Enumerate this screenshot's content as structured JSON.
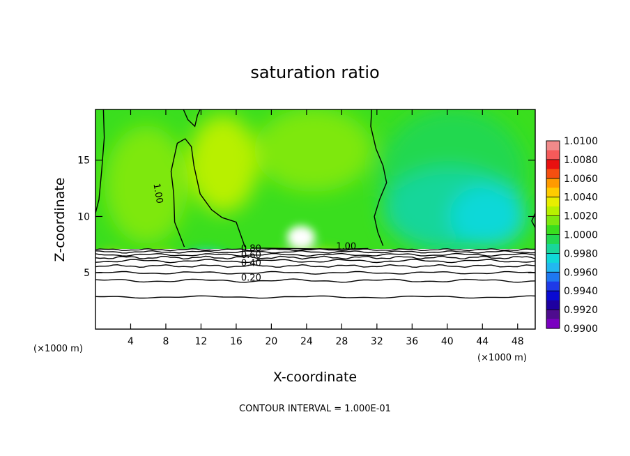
{
  "chart_data": {
    "type": "heatmap",
    "title": "saturation ratio",
    "xlabel": "X-coordinate",
    "ylabel": "Z-coordinate",
    "x_unit_label_left": "(×1000 m)",
    "x_unit_label_right": "(×1000 m)",
    "footer": "CONTOUR INTERVAL = 1.000E-01",
    "xlim": [
      0,
      50
    ],
    "ylim": [
      0,
      19.5
    ],
    "x_ticks": [
      4,
      8,
      12,
      16,
      20,
      24,
      28,
      32,
      36,
      40,
      44,
      48
    ],
    "y_ticks": [
      5,
      10,
      15
    ],
    "colorbar": {
      "levels": [
        "1.0100",
        "1.0080",
        "1.0060",
        "1.0040",
        "1.0020",
        "1.0000",
        "0.9980",
        "0.9960",
        "0.9940",
        "0.9920",
        "0.9900"
      ],
      "colors": [
        "#f08a8a",
        "#f55a5a",
        "#e81010",
        "#f54f10",
        "#ff9a00",
        "#ffcc00",
        "#e8ee00",
        "#b8f000",
        "#7ee810",
        "#3ade1e",
        "#22d850",
        "#19d69a",
        "#10d8d8",
        "#22b8f0",
        "#1e78f0",
        "#1e3ae8",
        "#0a0ad2",
        "#1e00a0",
        "#4e0c8e",
        "#7a00c0"
      ]
    },
    "contour_labels": [
      {
        "text": "1.00",
        "x": 6.8,
        "z": 12.0
      },
      {
        "text": "1.00",
        "x": 28.5,
        "z": 7.1
      },
      {
        "text": "0.80",
        "x": 17.7,
        "z": 6.9
      },
      {
        "text": "0.60",
        "x": 17.7,
        "z": 6.3
      },
      {
        "text": "0.40",
        "x": 17.7,
        "z": 5.6
      },
      {
        "text": "0.20",
        "x": 17.7,
        "z": 4.3
      }
    ]
  }
}
